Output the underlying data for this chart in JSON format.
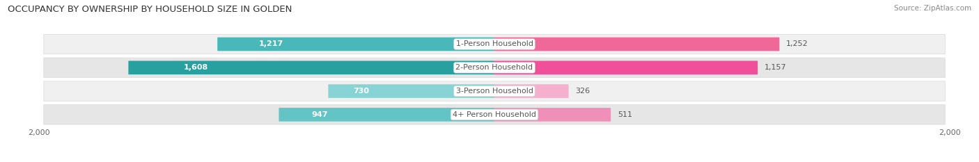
{
  "title": "OCCUPANCY BY OWNERSHIP BY HOUSEHOLD SIZE IN GOLDEN",
  "source": "Source: ZipAtlas.com",
  "categories": [
    "1-Person Household",
    "2-Person Household",
    "3-Person Household",
    "4+ Person Household"
  ],
  "owner_values": [
    1217,
    1608,
    730,
    947
  ],
  "renter_values": [
    1252,
    1157,
    326,
    511
  ],
  "max_scale": 2000,
  "owner_colors": [
    "#4ab8b8",
    "#28a0a0",
    "#88d4d4",
    "#62c4c4"
  ],
  "renter_colors": [
    "#f06898",
    "#f0509a",
    "#f4b0cc",
    "#f090b8"
  ],
  "row_bg_color": "#eeeeee",
  "row_bg_color2": "#e4e4e4",
  "title_fontsize": 9.5,
  "source_fontsize": 7.5,
  "bar_label_fontsize": 8,
  "category_fontsize": 8,
  "axis_label_fontsize": 8,
  "legend_fontsize": 8
}
